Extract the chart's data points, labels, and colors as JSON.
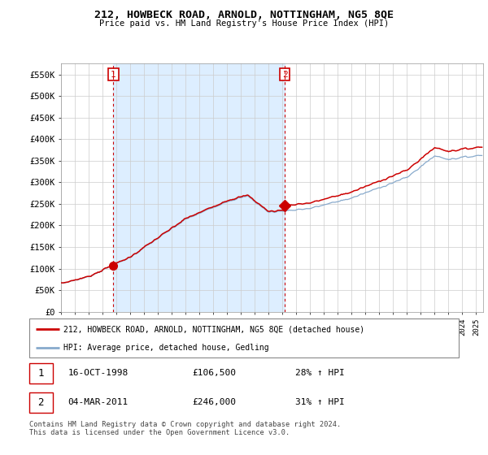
{
  "title": "212, HOWBECK ROAD, ARNOLD, NOTTINGHAM, NG5 8QE",
  "subtitle": "Price paid vs. HM Land Registry's House Price Index (HPI)",
  "ylabel_ticks": [
    "£0",
    "£50K",
    "£100K",
    "£150K",
    "£200K",
    "£250K",
    "£300K",
    "£350K",
    "£400K",
    "£450K",
    "£500K",
    "£550K"
  ],
  "ytick_values": [
    0,
    50000,
    100000,
    150000,
    200000,
    250000,
    300000,
    350000,
    400000,
    450000,
    500000,
    550000
  ],
  "ylim": [
    0,
    575000
  ],
  "xlim_min": 1995,
  "xlim_max": 2025.5,
  "legend_label_red": "212, HOWBECK ROAD, ARNOLD, NOTTINGHAM, NG5 8QE (detached house)",
  "legend_label_blue": "HPI: Average price, detached house, Gedling",
  "transaction1_label": "1",
  "transaction1_date": "16-OCT-1998",
  "transaction1_price": "£106,500",
  "transaction1_hpi": "28% ↑ HPI",
  "transaction2_label": "2",
  "transaction2_date": "04-MAR-2011",
  "transaction2_price": "£246,000",
  "transaction2_hpi": "31% ↑ HPI",
  "footnote": "Contains HM Land Registry data © Crown copyright and database right 2024.\nThis data is licensed under the Open Government Licence v3.0.",
  "red_color": "#cc0000",
  "blue_color": "#88aacc",
  "shade_color": "#ddeeff",
  "background_color": "#ffffff",
  "grid_color": "#cccccc",
  "price_1998": 106500,
  "price_2011": 246000,
  "year_1998": 1998.79,
  "year_2011": 2011.17
}
